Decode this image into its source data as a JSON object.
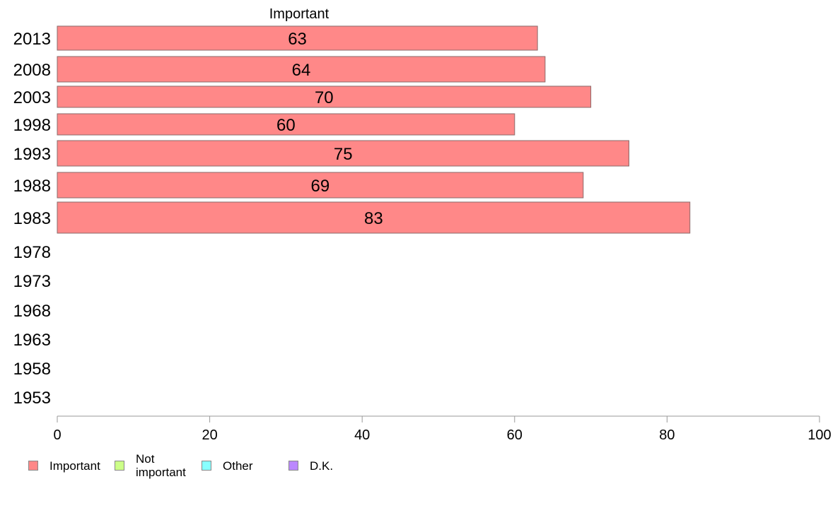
{
  "chart_data": {
    "type": "bar",
    "orientation": "horizontal",
    "column_title": "Important",
    "categories": [
      "2013",
      "2008",
      "2003",
      "1998",
      "1993",
      "1988",
      "1983",
      "1978",
      "1973",
      "1968",
      "1963",
      "1958",
      "1953"
    ],
    "series": [
      {
        "name": "Important",
        "color": "#ff8888",
        "values": [
          63,
          64,
          70,
          60,
          75,
          69,
          83,
          null,
          null,
          null,
          null,
          null,
          null
        ]
      }
    ],
    "data_labels": [
      "63",
      "64",
      "70",
      "60",
      "75",
      "69",
      "83",
      "",
      "",
      "",
      "",
      "",
      ""
    ],
    "xlim": [
      0,
      100
    ],
    "xticks": [
      "0",
      "20",
      "40",
      "60",
      "80",
      "100"
    ],
    "xlabel": "",
    "ylabel": "",
    "grid": false,
    "legend_position": "bottom-left"
  },
  "legend": {
    "items": [
      {
        "label": "Important",
        "color": "#ff8888"
      },
      {
        "label": "Not\nimportant",
        "color": "#ccff88"
      },
      {
        "label": "Other",
        "color": "#88ffff"
      },
      {
        "label": "D.K.",
        "color": "#bb88ff"
      }
    ]
  }
}
